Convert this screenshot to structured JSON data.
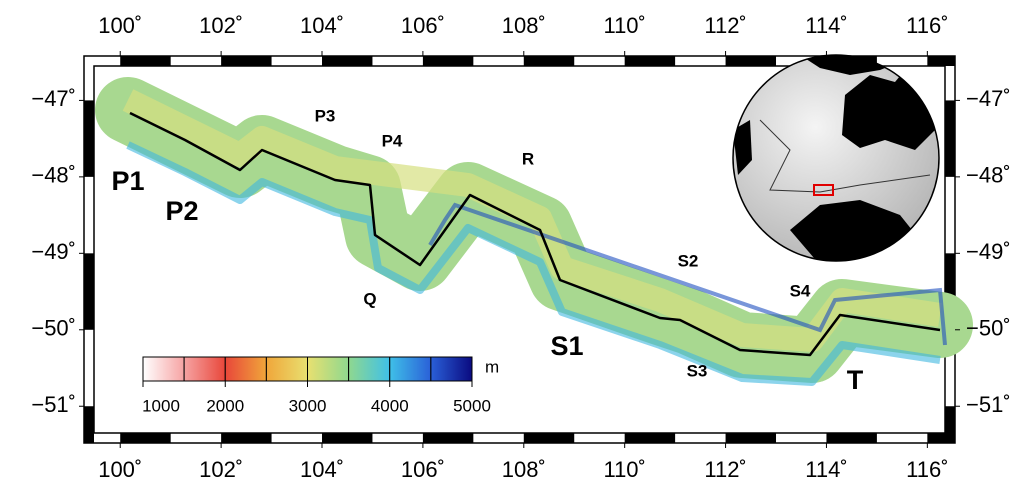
{
  "map": {
    "xlim": [
      99.48,
      116.35
    ],
    "ylim": [
      -51.35,
      -46.55
    ],
    "xticks": [
      {
        "value": 100,
        "label": "100˚"
      },
      {
        "value": 102,
        "label": "102˚"
      },
      {
        "value": 104,
        "label": "104˚"
      },
      {
        "value": 106,
        "label": "106˚"
      },
      {
        "value": 108,
        "label": "108˚"
      },
      {
        "value": 110,
        "label": "110˚"
      },
      {
        "value": 112,
        "label": "112˚"
      },
      {
        "value": 114,
        "label": "114˚"
      },
      {
        "value": 116,
        "label": "116˚"
      }
    ],
    "yticks": [
      {
        "value": -47,
        "label": "−47˚"
      },
      {
        "value": -48,
        "label": "−48˚"
      },
      {
        "value": -49,
        "label": "−49˚"
      },
      {
        "value": -50,
        "label": "−50˚"
      },
      {
        "value": -51,
        "label": "−51˚"
      }
    ],
    "site_labels": [
      "P1",
      "P2",
      "P3",
      "P4",
      "Q",
      "R",
      "S1",
      "S2",
      "S3",
      "S4",
      "T"
    ],
    "colorbar": {
      "unit": "m",
      "range": [
        1000,
        5000
      ],
      "ticks": [
        1000,
        2000,
        3000,
        4000,
        5000
      ],
      "colors": [
        "#ffffff",
        "#f6a3a3",
        "#e8473a",
        "#f0a63a",
        "#e8e070",
        "#8fd88f",
        "#3fc0e8",
        "#2a60d8",
        "#0a0a80"
      ]
    }
  }
}
